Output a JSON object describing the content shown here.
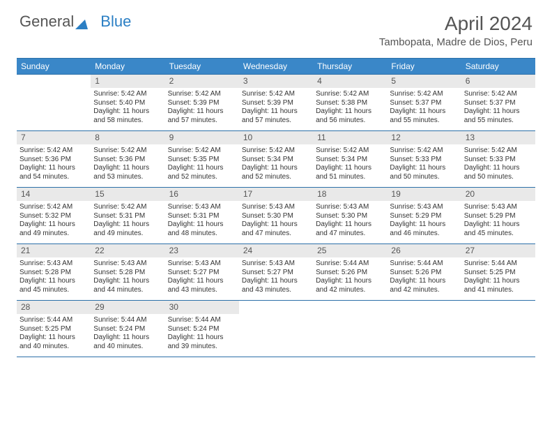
{
  "brand": {
    "part1": "General",
    "part2": "Blue"
  },
  "title": "April 2024",
  "location": "Tambopata, Madre de Dios, Peru",
  "colors": {
    "header_bg": "#3a87c8",
    "header_border": "#2b6fa8",
    "daynum_bg": "#e9e9e9",
    "text": "#333333",
    "muted": "#555555"
  },
  "weekdays": [
    "Sunday",
    "Monday",
    "Tuesday",
    "Wednesday",
    "Thursday",
    "Friday",
    "Saturday"
  ],
  "first_weekday_index": 1,
  "days": [
    {
      "n": 1,
      "sr": "5:42 AM",
      "ss": "5:40 PM",
      "dl": "11 hours and 58 minutes."
    },
    {
      "n": 2,
      "sr": "5:42 AM",
      "ss": "5:39 PM",
      "dl": "11 hours and 57 minutes."
    },
    {
      "n": 3,
      "sr": "5:42 AM",
      "ss": "5:39 PM",
      "dl": "11 hours and 57 minutes."
    },
    {
      "n": 4,
      "sr": "5:42 AM",
      "ss": "5:38 PM",
      "dl": "11 hours and 56 minutes."
    },
    {
      "n": 5,
      "sr": "5:42 AM",
      "ss": "5:37 PM",
      "dl": "11 hours and 55 minutes."
    },
    {
      "n": 6,
      "sr": "5:42 AM",
      "ss": "5:37 PM",
      "dl": "11 hours and 55 minutes."
    },
    {
      "n": 7,
      "sr": "5:42 AM",
      "ss": "5:36 PM",
      "dl": "11 hours and 54 minutes."
    },
    {
      "n": 8,
      "sr": "5:42 AM",
      "ss": "5:36 PM",
      "dl": "11 hours and 53 minutes."
    },
    {
      "n": 9,
      "sr": "5:42 AM",
      "ss": "5:35 PM",
      "dl": "11 hours and 52 minutes."
    },
    {
      "n": 10,
      "sr": "5:42 AM",
      "ss": "5:34 PM",
      "dl": "11 hours and 52 minutes."
    },
    {
      "n": 11,
      "sr": "5:42 AM",
      "ss": "5:34 PM",
      "dl": "11 hours and 51 minutes."
    },
    {
      "n": 12,
      "sr": "5:42 AM",
      "ss": "5:33 PM",
      "dl": "11 hours and 50 minutes."
    },
    {
      "n": 13,
      "sr": "5:42 AM",
      "ss": "5:33 PM",
      "dl": "11 hours and 50 minutes."
    },
    {
      "n": 14,
      "sr": "5:42 AM",
      "ss": "5:32 PM",
      "dl": "11 hours and 49 minutes."
    },
    {
      "n": 15,
      "sr": "5:42 AM",
      "ss": "5:31 PM",
      "dl": "11 hours and 49 minutes."
    },
    {
      "n": 16,
      "sr": "5:43 AM",
      "ss": "5:31 PM",
      "dl": "11 hours and 48 minutes."
    },
    {
      "n": 17,
      "sr": "5:43 AM",
      "ss": "5:30 PM",
      "dl": "11 hours and 47 minutes."
    },
    {
      "n": 18,
      "sr": "5:43 AM",
      "ss": "5:30 PM",
      "dl": "11 hours and 47 minutes."
    },
    {
      "n": 19,
      "sr": "5:43 AM",
      "ss": "5:29 PM",
      "dl": "11 hours and 46 minutes."
    },
    {
      "n": 20,
      "sr": "5:43 AM",
      "ss": "5:29 PM",
      "dl": "11 hours and 45 minutes."
    },
    {
      "n": 21,
      "sr": "5:43 AM",
      "ss": "5:28 PM",
      "dl": "11 hours and 45 minutes."
    },
    {
      "n": 22,
      "sr": "5:43 AM",
      "ss": "5:28 PM",
      "dl": "11 hours and 44 minutes."
    },
    {
      "n": 23,
      "sr": "5:43 AM",
      "ss": "5:27 PM",
      "dl": "11 hours and 43 minutes."
    },
    {
      "n": 24,
      "sr": "5:43 AM",
      "ss": "5:27 PM",
      "dl": "11 hours and 43 minutes."
    },
    {
      "n": 25,
      "sr": "5:44 AM",
      "ss": "5:26 PM",
      "dl": "11 hours and 42 minutes."
    },
    {
      "n": 26,
      "sr": "5:44 AM",
      "ss": "5:26 PM",
      "dl": "11 hours and 42 minutes."
    },
    {
      "n": 27,
      "sr": "5:44 AM",
      "ss": "5:25 PM",
      "dl": "11 hours and 41 minutes."
    },
    {
      "n": 28,
      "sr": "5:44 AM",
      "ss": "5:25 PM",
      "dl": "11 hours and 40 minutes."
    },
    {
      "n": 29,
      "sr": "5:44 AM",
      "ss": "5:24 PM",
      "dl": "11 hours and 40 minutes."
    },
    {
      "n": 30,
      "sr": "5:44 AM",
      "ss": "5:24 PM",
      "dl": "11 hours and 39 minutes."
    }
  ],
  "labels": {
    "sunrise": "Sunrise:",
    "sunset": "Sunset:",
    "daylight": "Daylight:"
  }
}
